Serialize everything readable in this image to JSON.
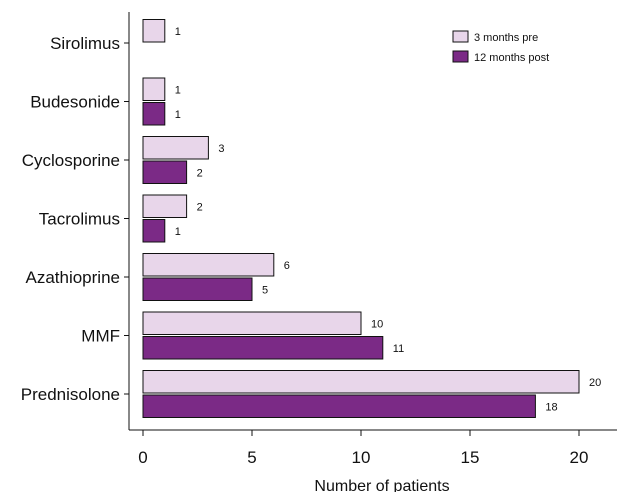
{
  "chart_data": {
    "type": "bar",
    "orientation": "horizontal",
    "categories": [
      "Sirolimus",
      "Budesonide",
      "Cyclosporine",
      "Tacrolimus",
      "Azathioprine",
      "MMF",
      "Prednisolone"
    ],
    "series": [
      {
        "name": "3 months pre",
        "color": "#e8d6ea",
        "values": [
          1,
          1,
          3,
          2,
          6,
          10,
          20
        ]
      },
      {
        "name": "12 months post",
        "color": "#7b2a86",
        "values": [
          null,
          1,
          2,
          1,
          5,
          11,
          18
        ]
      }
    ],
    "xlabel": "Number of patients",
    "ylabel": "",
    "xlim": [
      0,
      22
    ],
    "xticks": [
      0,
      5,
      10,
      15,
      20
    ],
    "legend_position": "top-right",
    "grid": false
  }
}
